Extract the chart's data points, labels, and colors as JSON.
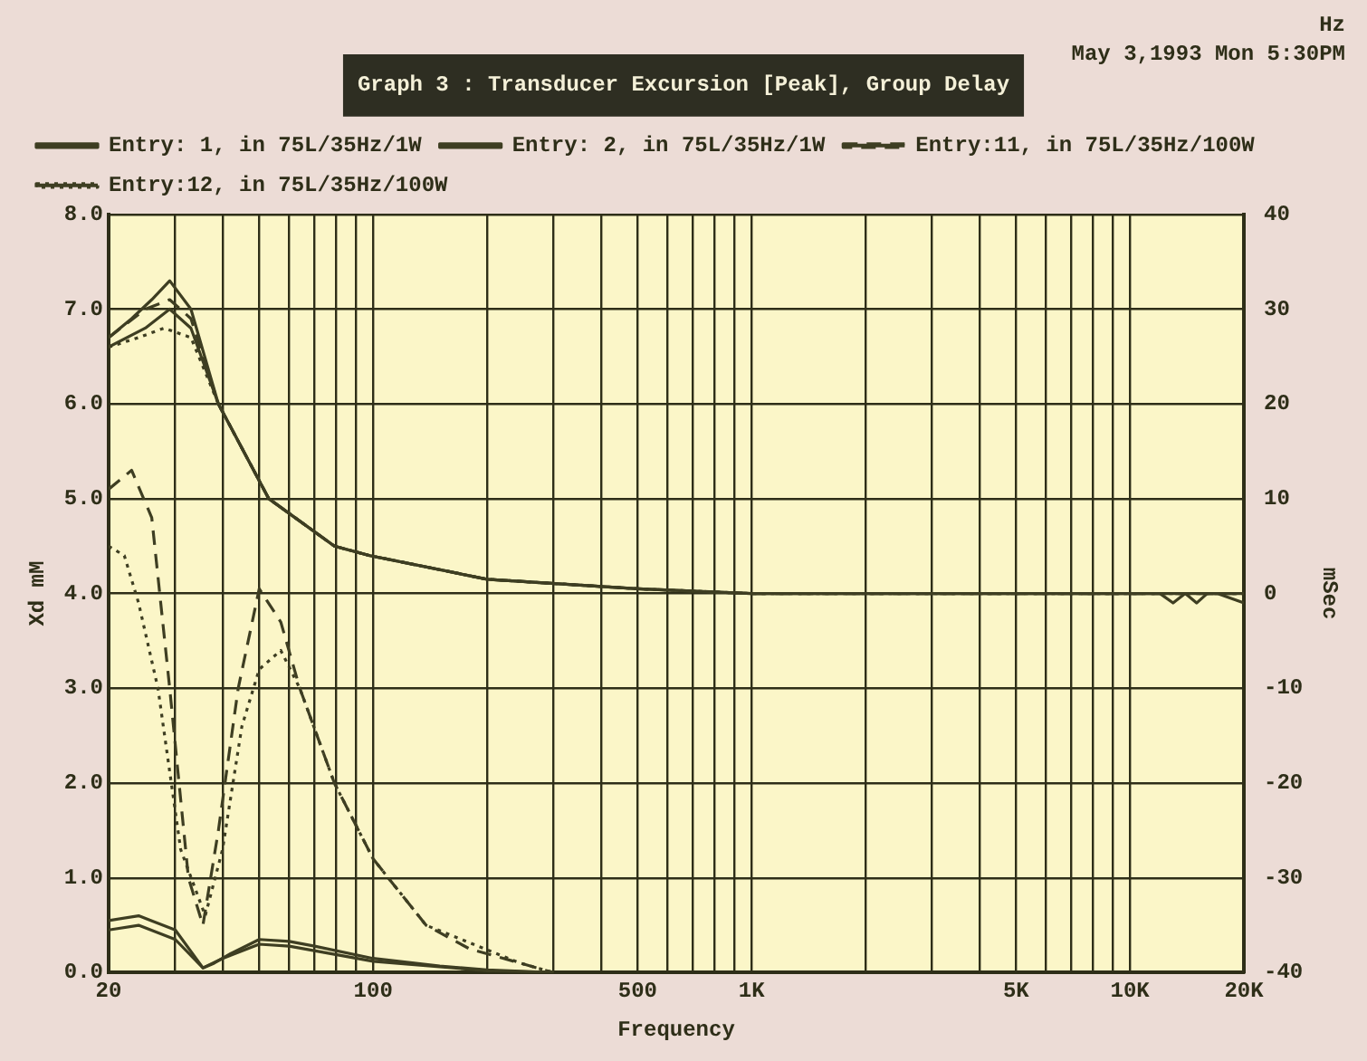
{
  "chart_data": {
    "type": "line",
    "title": "Graph 3 : Transducer Excursion [Peak], Group Delay",
    "xlabel": "Frequency",
    "ylabel": "Xd mM",
    "y2label": "mSec",
    "annotations": [
      "Hz",
      "May 3,1993 Mon 5:30PM"
    ],
    "log": "x",
    "xlim": [
      20,
      20000
    ],
    "xticks": [
      {
        "value": 20,
        "label": "20"
      },
      {
        "value": 30,
        "label": null
      },
      {
        "value": 40,
        "label": null
      },
      {
        "value": 50,
        "label": null
      },
      {
        "value": 60,
        "label": null
      },
      {
        "value": 70,
        "label": null
      },
      {
        "value": 80,
        "label": null
      },
      {
        "value": 90,
        "label": null
      },
      {
        "value": 100,
        "label": "100"
      },
      {
        "value": 200,
        "label": null
      },
      {
        "value": 300,
        "label": null
      },
      {
        "value": 400,
        "label": null
      },
      {
        "value": 500,
        "label": "500"
      },
      {
        "value": 600,
        "label": null
      },
      {
        "value": 700,
        "label": null
      },
      {
        "value": 800,
        "label": null
      },
      {
        "value": 900,
        "label": null
      },
      {
        "value": 1000,
        "label": "1K"
      },
      {
        "value": 2000,
        "label": null
      },
      {
        "value": 3000,
        "label": null
      },
      {
        "value": 4000,
        "label": null
      },
      {
        "value": 5000,
        "label": "5K"
      },
      {
        "value": 6000,
        "label": null
      },
      {
        "value": 7000,
        "label": null
      },
      {
        "value": 8000,
        "label": null
      },
      {
        "value": 9000,
        "label": null
      },
      {
        "value": 10000,
        "label": "10K"
      },
      {
        "value": 20000,
        "label": "20K"
      }
    ],
    "ylim": [
      0,
      8
    ],
    "yticks": [
      {
        "value": 0,
        "label": "0.0"
      },
      {
        "value": 1,
        "label": "1.0"
      },
      {
        "value": 2,
        "label": "2.0"
      },
      {
        "value": 3,
        "label": "3.0"
      },
      {
        "value": 4,
        "label": "4.0"
      },
      {
        "value": 5,
        "label": "5.0"
      },
      {
        "value": 6,
        "label": "6.0"
      },
      {
        "value": 7,
        "label": "7.0"
      },
      {
        "value": 8,
        "label": "8.0"
      }
    ],
    "y2lim": [
      -40,
      40
    ],
    "y2ticks": [
      -40,
      -30,
      -20,
      -10,
      0,
      10,
      20,
      30,
      40
    ],
    "grid": true,
    "legend": "top",
    "marker": "none",
    "series": [
      {
        "name": "Entry: 1, in 75L/35Hz/1W",
        "color": "#3e3e22",
        "line_style": "solid",
        "x": [
          20,
          24,
          30,
          35.5,
          38,
          42,
          50,
          60,
          70,
          100,
          150,
          200,
          300
        ],
        "values": [
          0.55,
          0.6,
          0.45,
          0.05,
          0.1,
          0.2,
          0.35,
          0.33,
          0.28,
          0.15,
          0.07,
          0.03,
          0
        ]
      },
      {
        "name": "Entry: 2, in 75L/35Hz/1W",
        "color": "#3e3e22",
        "line_style": "solid",
        "x": [
          20,
          24,
          30,
          35.5,
          40,
          50,
          60,
          100,
          200,
          300
        ],
        "values": [
          0.45,
          0.5,
          0.35,
          0.05,
          0.15,
          0.3,
          0.28,
          0.12,
          0.02,
          0
        ]
      },
      {
        "name": "Entry:11, in 75L/35Hz/100W",
        "color": "#3e3e22",
        "line_style": "dashed",
        "x": [
          20,
          23,
          26,
          29,
          32.5,
          35.5,
          39,
          44,
          50,
          57,
          64,
          79,
          100,
          138,
          180,
          245,
          300
        ],
        "values": [
          5.1,
          5.3,
          4.8,
          3.0,
          1.0,
          0.5,
          1.5,
          3.0,
          4.05,
          3.7,
          3.0,
          2.0,
          1.2,
          0.5,
          0.25,
          0.1,
          0
        ]
      },
      {
        "name": "Entry:12, in 75L/35Hz/100W",
        "color": "#3e3e22",
        "line_style": "dotted",
        "x": [
          20,
          22,
          24,
          27,
          31,
          36,
          40,
          45,
          50,
          57,
          64,
          79,
          100,
          138,
          245,
          300
        ],
        "values": [
          4.5,
          4.4,
          3.9,
          3.0,
          1.3,
          0.6,
          1.3,
          2.6,
          3.2,
          3.4,
          3.0,
          2.0,
          1.2,
          0.5,
          0.1,
          0
        ]
      },
      {
        "axis": "y2",
        "color": "#3e3e22",
        "line_style": "solid",
        "x": [
          20,
          23,
          26,
          29,
          33,
          39,
          53,
          79,
          98,
          200,
          500,
          1000,
          12000,
          13000,
          14000,
          15000,
          16000,
          17000,
          20000
        ],
        "values": [
          27,
          29,
          31,
          33,
          30,
          20,
          10,
          5,
          4,
          1.5,
          0.5,
          0,
          0,
          -1,
          0,
          -1,
          0,
          0,
          -1
        ]
      },
      {
        "axis": "y2",
        "color": "#3e3e22",
        "line_style": "solid",
        "x": [
          20,
          25,
          29,
          33,
          39,
          53,
          79,
          98,
          200,
          500,
          1000,
          20000
        ],
        "values": [
          26,
          28,
          30,
          28,
          20,
          10,
          5,
          4,
          1.5,
          0.5,
          0,
          0
        ]
      },
      {
        "axis": "y2",
        "color": "#3e3e22",
        "line_style": "dashed",
        "x": [
          20,
          25,
          29,
          33,
          39,
          53,
          79,
          98,
          200,
          500,
          1000,
          20000
        ],
        "values": [
          27,
          30,
          31,
          29,
          20,
          10,
          5,
          4,
          1.5,
          0.5,
          0,
          0
        ]
      },
      {
        "axis": "y2",
        "color": "#3e3e22",
        "line_style": "dotted",
        "x": [
          20,
          24,
          28,
          33,
          39,
          53,
          79,
          98,
          200,
          500,
          1000,
          20000
        ],
        "values": [
          26,
          27,
          28,
          27,
          20,
          10,
          5,
          4,
          1.5,
          0.5,
          0,
          0
        ]
      }
    ]
  }
}
